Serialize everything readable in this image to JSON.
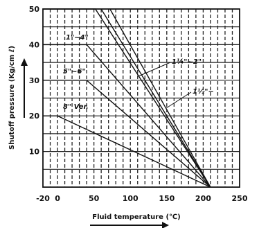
{
  "chart_data": {
    "type": "line",
    "title": "",
    "xlabel": "Fluid temperature (℃)",
    "ylabel": "Shutoff pressure (Kg/cm ℓ)",
    "xlim": [
      -20,
      250
    ],
    "ylim": [
      0,
      50
    ],
    "x_ticks": [
      "-20",
      "0",
      "50",
      "100",
      "150",
      "200",
      "250"
    ],
    "x_tick_values": [
      -20,
      0,
      50,
      100,
      150,
      200,
      250
    ],
    "y_ticks": [
      "10",
      "20",
      "30",
      "40",
      "50"
    ],
    "y_tick_values": [
      10,
      20,
      30,
      40,
      50
    ],
    "grid": true,
    "series": [
      {
        "name": "",
        "points": [
          [
            -20,
            50
          ],
          [
            52,
            50
          ],
          [
            210,
            0
          ]
        ]
      },
      {
        "name": "1\"~4\"",
        "points": [
          [
            -20,
            40
          ],
          [
            40,
            40
          ],
          [
            210,
            0
          ]
        ]
      },
      {
        "name": "5\"~6\"",
        "points": [
          [
            -20,
            30
          ],
          [
            40,
            30
          ],
          [
            210,
            0
          ]
        ]
      },
      {
        "name": "8\" Ver.",
        "points": [
          [
            -20,
            20
          ],
          [
            0,
            20
          ],
          [
            210,
            0
          ]
        ]
      },
      {
        "name": "1¼\"~2\"",
        "points": [
          [
            60,
            50
          ],
          [
            210,
            0
          ]
        ]
      },
      {
        "name": "1½\"~",
        "points": [
          [
            72,
            50
          ],
          [
            210,
            0
          ]
        ]
      }
    ]
  }
}
